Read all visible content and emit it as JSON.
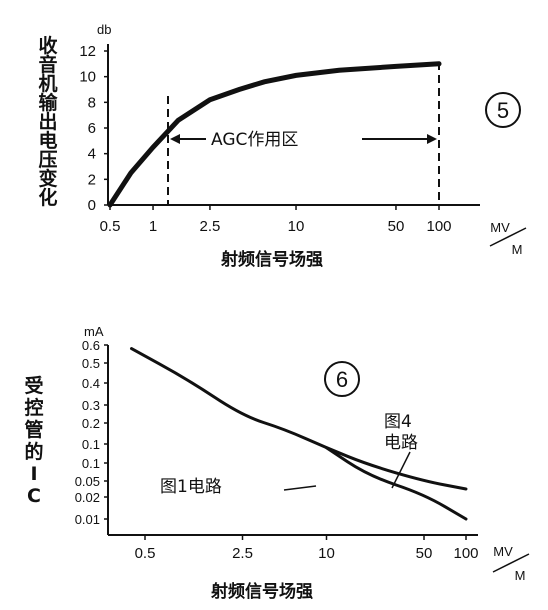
{
  "chart_data": [
    {
      "type": "line",
      "badge": "5",
      "ylabel": "收音机输出电压变化",
      "y_unit": "db",
      "xlabel": "射频信号场强",
      "x_unit_top": "MV",
      "x_unit_bottom": "M",
      "yticks": [
        "0",
        "2",
        "4",
        "6",
        "8",
        "10",
        "12"
      ],
      "ylim": [
        0,
        12
      ],
      "xticks": [
        "0.5",
        "1",
        "2.5",
        "10",
        "50",
        "100"
      ],
      "xscale": "log",
      "xlim": [
        0.5,
        100
      ],
      "annotation": "AGC作用区",
      "agc_range": [
        2.5,
        100
      ],
      "series": [
        {
          "x": [
            0.5,
            0.7,
            1,
            1.5,
            2.5,
            4,
            6,
            10,
            20,
            50,
            100
          ],
          "y": [
            0,
            2.5,
            4.5,
            6.6,
            8.2,
            9.0,
            9.6,
            10.1,
            10.5,
            10.8,
            11.0
          ]
        }
      ]
    },
    {
      "type": "line",
      "badge": "6",
      "ylabel": "受控管的IC",
      "y_unit": "mA",
      "xlabel": "射频信号场强",
      "x_unit_top": "MV",
      "x_unit_bottom": "M",
      "yticks": [
        "0.01",
        "0.02",
        "0.05",
        "0.1",
        "0.1",
        "0.2",
        "0.3",
        "0.4",
        "0.5",
        "0.6"
      ],
      "xticks": [
        "0.5",
        "2.5",
        "10",
        "50",
        "100"
      ],
      "xscale": "log",
      "xlim": [
        0.5,
        100
      ],
      "series": [
        {
          "name": "图4电路",
          "x": [
            0.4,
            1,
            2.5,
            5,
            10,
            20,
            50,
            100
          ],
          "y": [
            0.58,
            0.42,
            0.24,
            0.18,
            0.12,
            0.08,
            0.05,
            0.035
          ]
        },
        {
          "name": "图1电路",
          "x": [
            10,
            20,
            50,
            100
          ],
          "y": [
            0.12,
            0.06,
            0.025,
            0.01
          ]
        }
      ],
      "series_labels": [
        "图4",
        "电路",
        "图1电路"
      ]
    }
  ]
}
